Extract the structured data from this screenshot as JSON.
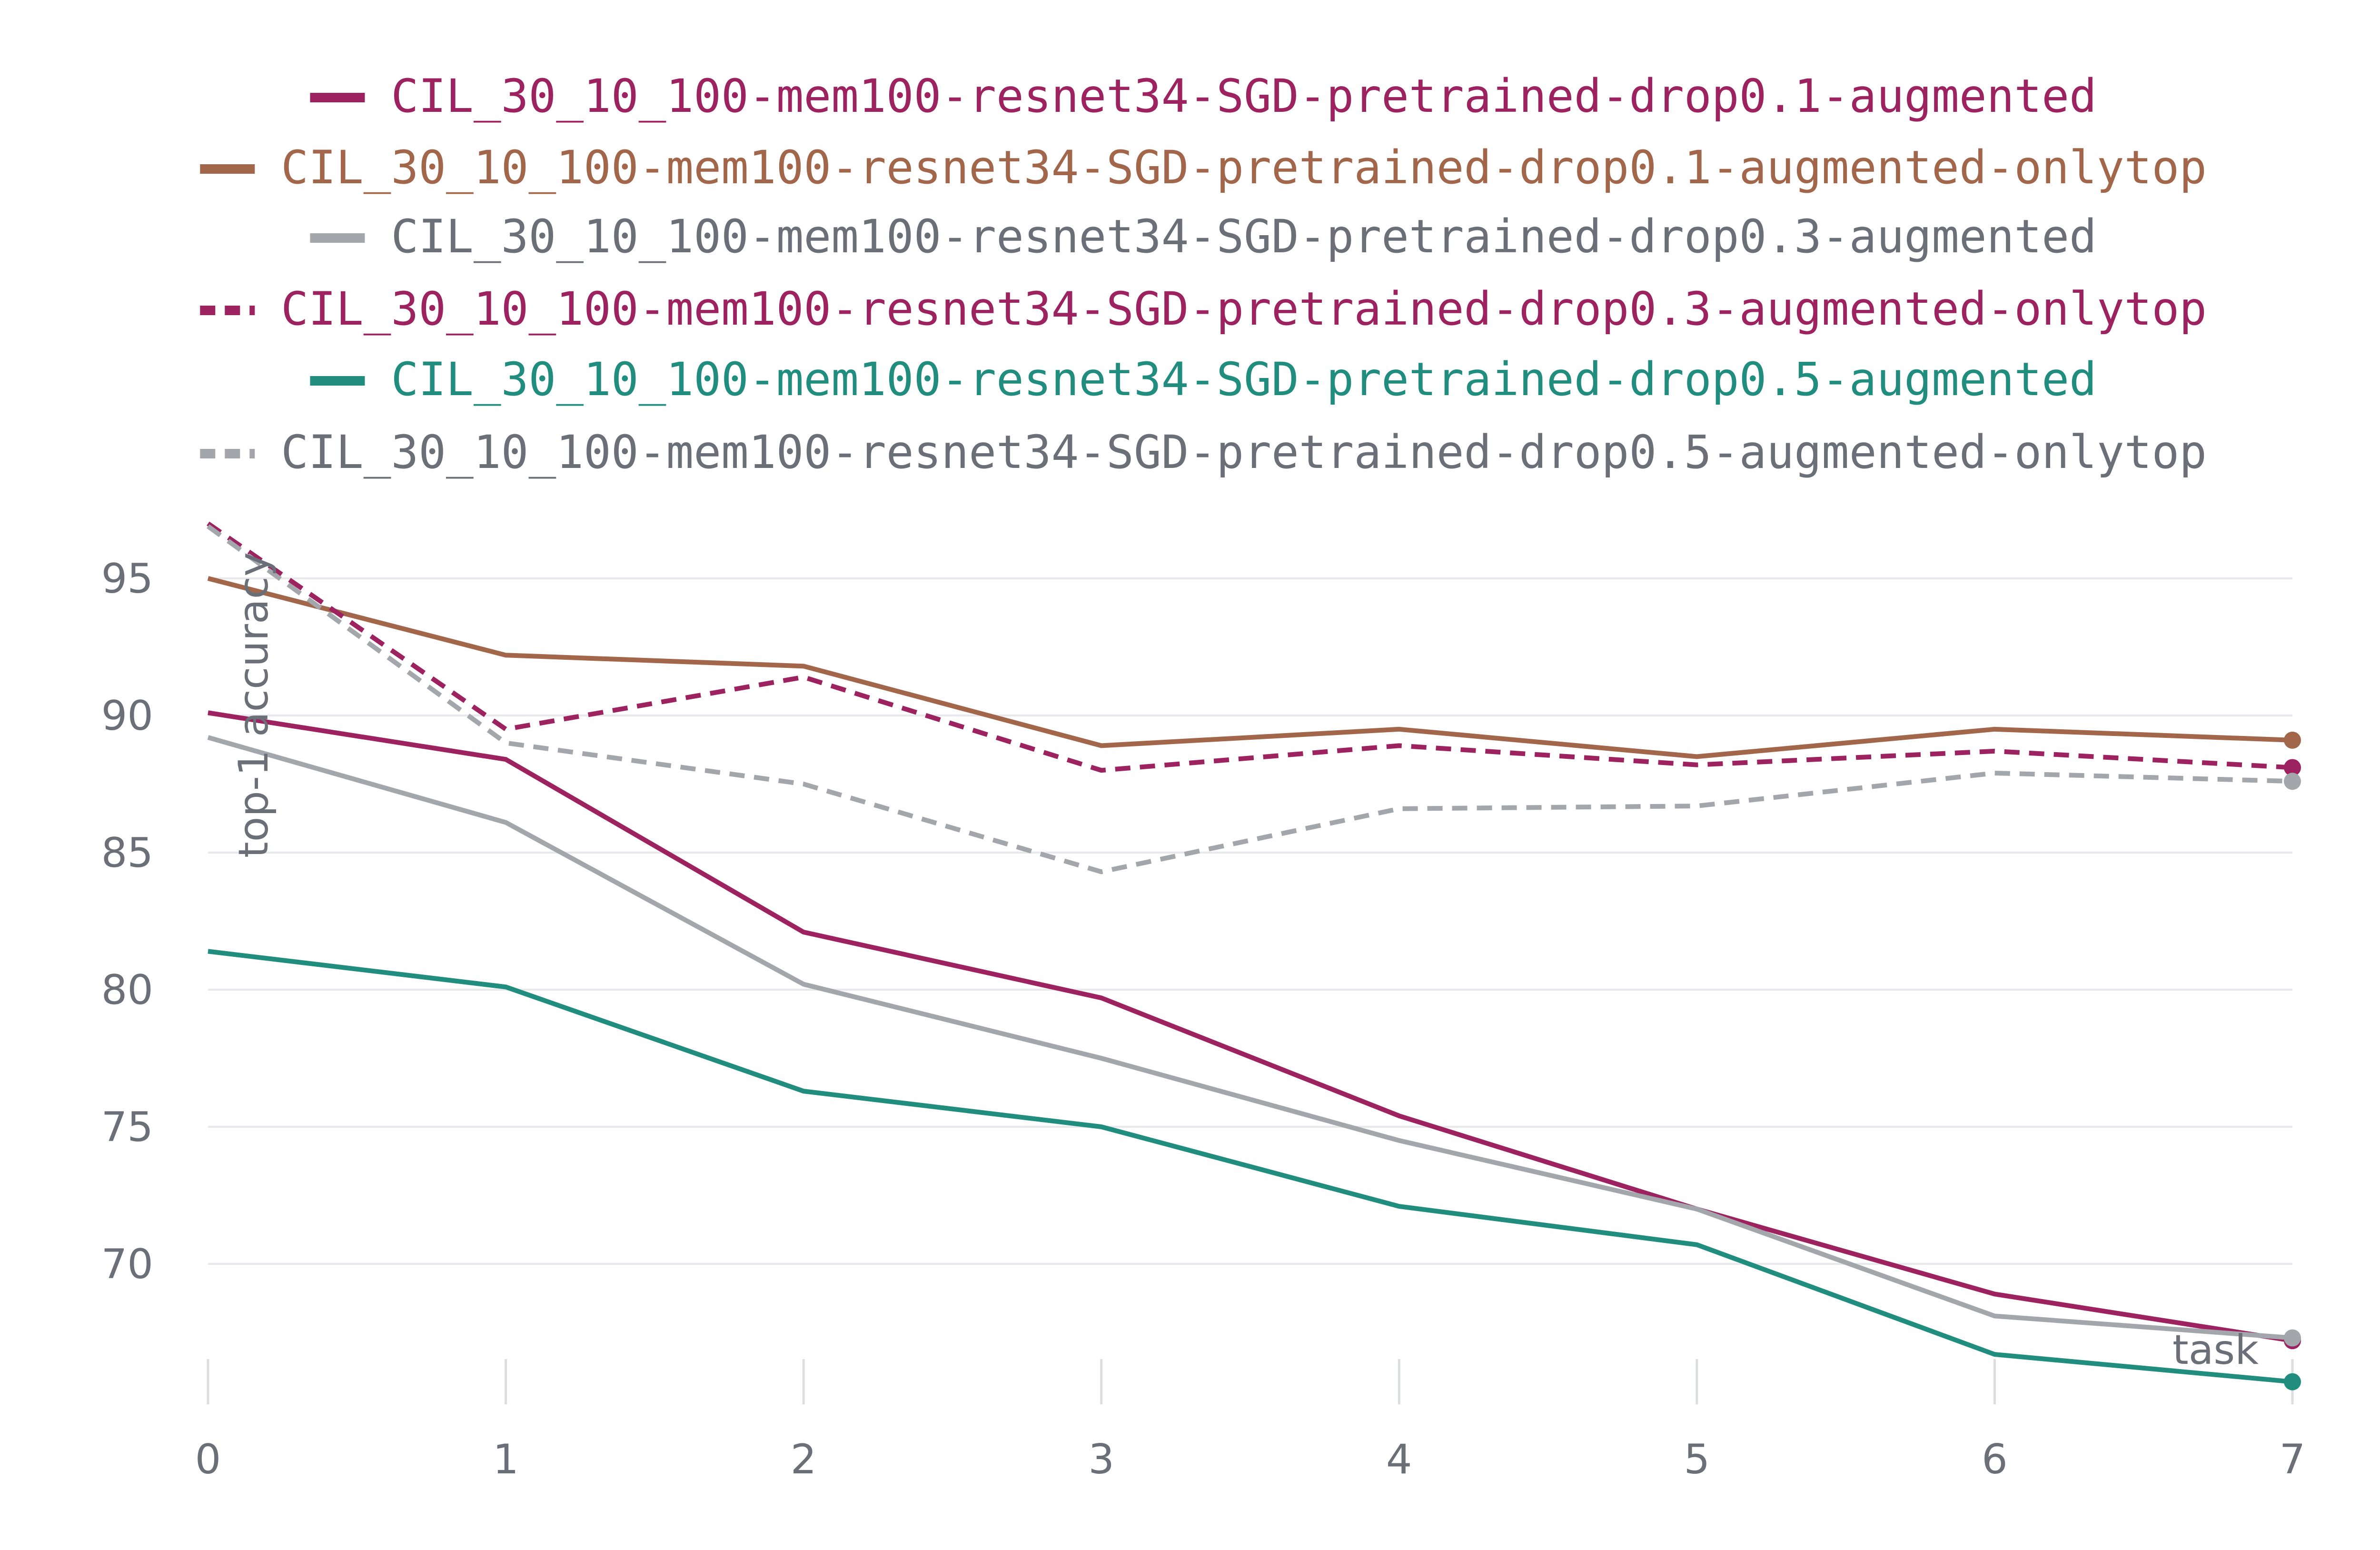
{
  "chart_data": {
    "type": "line",
    "xlabel": "task",
    "ylabel": "top-1 accuracy",
    "x": [
      0,
      1,
      2,
      3,
      4,
      5,
      6,
      7
    ],
    "xlim": [
      0,
      7
    ],
    "ylim": [
      65,
      98
    ],
    "yticks": [
      70,
      75,
      80,
      85,
      90,
      95
    ],
    "grid": true,
    "legend_position": "top",
    "series": [
      {
        "name": "CIL_30_10_100-mem100-resnet34-SGD-pretrained-drop0.1-augmented",
        "color": "#9c2360",
        "dash": "solid",
        "values": [
          90.1,
          88.4,
          82.1,
          79.7,
          75.4,
          72.0,
          68.9,
          67.2
        ]
      },
      {
        "name": "CIL_30_10_100-mem100-resnet34-SGD-pretrained-drop0.1-augmented-onlytop",
        "color": "#a2664b",
        "dash": "solid",
        "values": [
          95.0,
          92.2,
          91.8,
          88.9,
          89.5,
          88.5,
          89.5,
          89.1
        ]
      },
      {
        "name": "CIL_30_10_100-mem100-resnet34-SGD-pretrained-drop0.3-augmented",
        "color": "#a3a7ac",
        "dash": "solid",
        "values": [
          89.2,
          86.1,
          80.2,
          77.5,
          74.5,
          72.0,
          68.1,
          67.3
        ]
      },
      {
        "name": "CIL_30_10_100-mem100-resnet34-SGD-pretrained-drop0.3-augmented-onlytop",
        "color": "#9c2360",
        "dash": "dash",
        "values": [
          97.0,
          89.5,
          91.4,
          88.0,
          88.9,
          88.2,
          88.7,
          88.1
        ]
      },
      {
        "name": "CIL_30_10_100-mem100-resnet34-SGD-pretrained-drop0.5-augmented",
        "color": "#218d7e",
        "dash": "solid",
        "values": [
          81.4,
          80.1,
          76.3,
          75.0,
          72.1,
          70.7,
          66.7,
          65.7
        ]
      },
      {
        "name": "CIL_30_10_100-mem100-resnet34-SGD-pretrained-drop0.5-augmented-onlytop",
        "color": "#a3a7ac",
        "dash": "dash",
        "values": [
          96.9,
          89.0,
          87.5,
          84.3,
          86.6,
          86.7,
          87.9,
          87.6
        ]
      }
    ],
    "legend_text_colors": [
      "#9c2360",
      "#a2664b",
      "#6a6f78",
      "#9c2360",
      "#218d7e",
      "#6a6f78"
    ]
  }
}
